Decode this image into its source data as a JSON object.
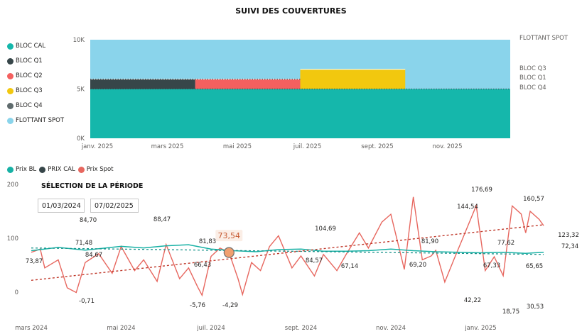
{
  "title": "SUIVI DES COUVERTURES",
  "colors": {
    "bloc_cal": "#15b7ab",
    "bloc_q1": "#374649",
    "bloc_q2": "#f4605f",
    "bloc_q3": "#f2c80f",
    "bloc_q4": "#5f6b6d",
    "flottant_spot": "#8ad4eb",
    "prix_bl": "#17b1a5",
    "prix_cal": "#374649",
    "prix_spot": "#e7675f"
  },
  "legend_top": [
    {
      "label": "BLOC CAL",
      "color": "#15b7ab"
    },
    {
      "label": "BLOC Q1",
      "color": "#374649"
    },
    {
      "label": "BLOC Q2",
      "color": "#f4605f"
    },
    {
      "label": "BLOC Q3",
      "color": "#f2c80f"
    },
    {
      "label": "BLOC Q4",
      "color": "#5f6b6d"
    },
    {
      "label": "FLOTTANT SPOT",
      "color": "#8ad4eb"
    }
  ],
  "legend_bottom": [
    {
      "label": "Prix BL",
      "color": "#17b1a5"
    },
    {
      "label": "PRIX CAL",
      "color": "#374649"
    },
    {
      "label": "Prix Spot",
      "color": "#e7675f"
    }
  ],
  "period": {
    "title": "SÉLECTION DE LA PÉRIODE",
    "start": "01/03/2024",
    "end": "07/02/2025"
  },
  "chart_data": [
    {
      "type": "area",
      "title": "SUIVI DES COUVERTURES",
      "ylim": [
        0,
        10000
      ],
      "y_ticks": [
        "0K",
        "5K",
        "10K"
      ],
      "x_ticks": [
        "janv. 2025",
        "mars 2025",
        "mai 2025",
        "juil. 2025",
        "sept. 2025",
        "nov. 2025"
      ],
      "x_range": [
        0,
        12
      ],
      "series": [
        {
          "name": "BLOC CAL",
          "segments": [
            {
              "from": 0,
              "to": 12,
              "bottom": 0,
              "top": 5000
            }
          ]
        },
        {
          "name": "BLOC Q1",
          "segments": [
            {
              "from": 0,
              "to": 3,
              "bottom": 5000,
              "top": 6000
            }
          ]
        },
        {
          "name": "BLOC Q2",
          "segments": [
            {
              "from": 3,
              "to": 6,
              "bottom": 5000,
              "top": 6000
            }
          ]
        },
        {
          "name": "BLOC Q3",
          "segments": [
            {
              "from": 6,
              "to": 9,
              "bottom": 5000,
              "top": 7000
            }
          ]
        },
        {
          "name": "BLOC Q4",
          "segments": [
            {
              "from": 9,
              "to": 12,
              "bottom": 5000,
              "top": 5000
            }
          ]
        },
        {
          "name": "FLOTTANT SPOT",
          "segments": [
            {
              "from": 0,
              "to": 12,
              "bottom": 5000,
              "top": 10000
            }
          ]
        }
      ],
      "end_labels": [
        "FLOTTANT SPOT",
        "BLOC Q3",
        "BLOC Q1",
        "BLOC Q4"
      ]
    },
    {
      "type": "line",
      "ylim": [
        0,
        200
      ],
      "y_ticks": [
        "0",
        "100",
        "200"
      ],
      "x_ticks": [
        "mars 2024",
        "mai 2024",
        "juil. 2024",
        "sept. 2024",
        "nov. 2024",
        "janv. 2025"
      ],
      "x_range": [
        0,
        12
      ],
      "series": [
        {
          "name": "Prix BL",
          "x": [
            0,
            0.6,
            1.2,
            2,
            2.5,
            3,
            3.5,
            4,
            4.5,
            5,
            5.5,
            6,
            6.5,
            7,
            7.5,
            8,
            8.5,
            9,
            9.5,
            10,
            10.5,
            11,
            11.4
          ],
          "y": [
            77,
            83,
            78,
            85,
            82,
            86,
            88,
            80,
            77,
            75,
            79,
            80,
            76,
            76,
            77,
            80,
            77,
            75,
            74,
            73,
            74,
            72,
            74
          ]
        },
        {
          "name": "PRIX CAL",
          "x": [
            0,
            11.4
          ],
          "y": [
            82,
            70
          ]
        },
        {
          "name": "Prix Spot trend",
          "x": [
            0,
            11.4
          ],
          "y": [
            22,
            125
          ]
        },
        {
          "name": "Prix Spot",
          "x": [
            0,
            0.2,
            0.3,
            0.6,
            0.8,
            1.0,
            1.2,
            1.5,
            1.8,
            2.0,
            2.3,
            2.5,
            2.8,
            3.0,
            3.3,
            3.5,
            3.7,
            3.8,
            4.0,
            4.2,
            4.4,
            4.6,
            4.7,
            4.9,
            5.1,
            5.3,
            5.5,
            5.8,
            6.0,
            6.3,
            6.5,
            6.8,
            7.0,
            7.3,
            7.5,
            7.8,
            8.0,
            8.3,
            8.5,
            8.7,
            8.9,
            9.0,
            9.2,
            9.4,
            9.6,
            9.9,
            10.1,
            10.3,
            10.5,
            10.7,
            10.9,
            11.0,
            11.1,
            11.3,
            11.4
          ],
          "y": [
            73.87,
            80,
            45,
            60,
            8,
            -0.71,
            55,
            71.48,
            35,
            84.67,
            40,
            60,
            20,
            88.47,
            25,
            45,
            10,
            -5.76,
            66.43,
            81.83,
            73.54,
            25,
            -4.29,
            55,
            40,
            84.57,
            104.69,
            45,
            67.14,
            30,
            70,
            40,
            69.2,
            110,
            81.9,
            130,
            144.54,
            42.22,
            176.69,
            60,
            67.33,
            77.62,
            18.75,
            60,
            100,
            160.57,
            40,
            65.65,
            30.53,
            160,
            145,
            110,
            150,
            135,
            123.32
          ]
        }
      ],
      "data_labels": [
        "73,87",
        "-0,71",
        "71,48",
        "84,70",
        "84,67",
        "88,47",
        "-5,76",
        "66,43",
        "81,83",
        "-4,29",
        "84,57",
        "104,69",
        "67,14",
        "69,20",
        "81,90",
        "144,54",
        "42,22",
        "176,69",
        "67,33",
        "77,62",
        "18,75",
        "160,57",
        "65,65",
        "30,53",
        "123,32",
        "72,34"
      ],
      "highlight": {
        "label": "73,54",
        "x": 4.4,
        "y": 73.54
      }
    }
  ]
}
